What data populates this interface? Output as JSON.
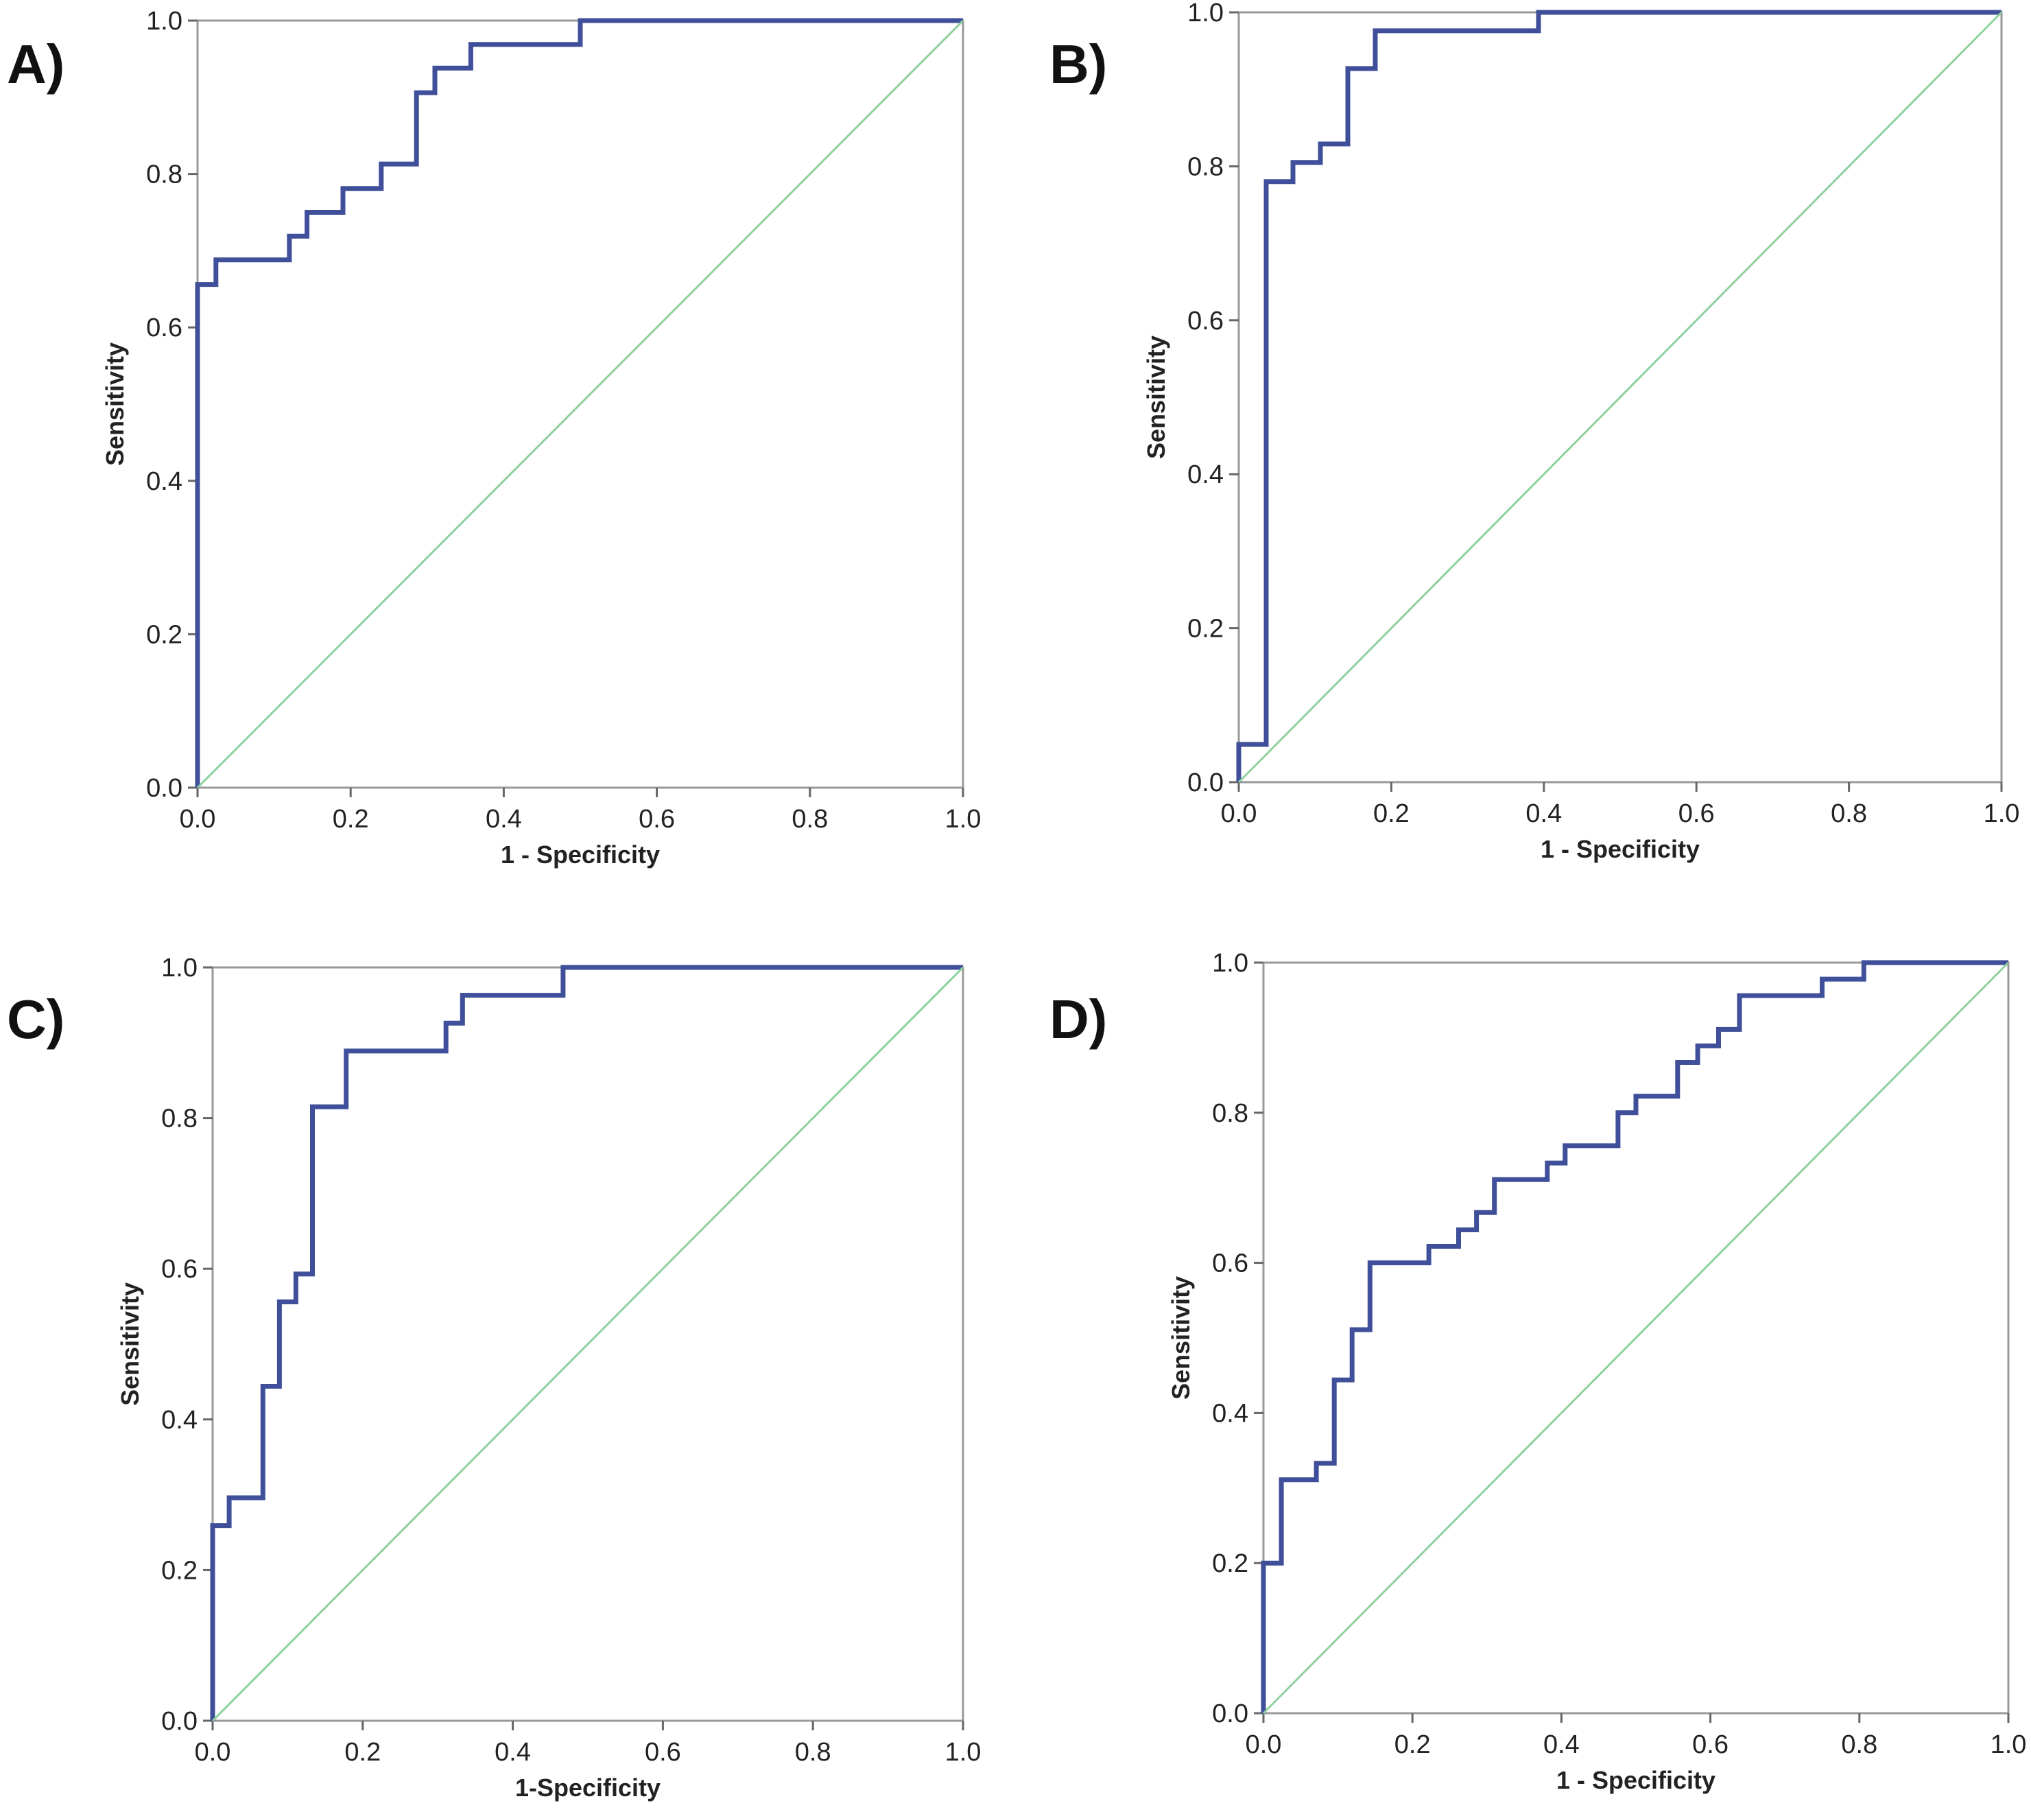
{
  "chart_data": [
    {
      "panel": "A)",
      "type": "line",
      "xlabel": "1 - Specificity",
      "ylabel": "Sensitivity",
      "xlim": [
        0,
        1
      ],
      "ylim": [
        0,
        1
      ],
      "xticks": [
        "0.0",
        "0.2",
        "0.4",
        "0.6",
        "0.8",
        "1.0"
      ],
      "yticks": [
        "0.0",
        "0.2",
        "0.4",
        "0.6",
        "0.8",
        "1.0"
      ],
      "colors": {
        "roc": "#3f4f9a",
        "reference": "#8fd19e",
        "frame": "#999999"
      },
      "series": [
        {
          "name": "ROC",
          "x": [
            0,
            0,
            0.024,
            0.024,
            0.12,
            0.12,
            0.143,
            0.143,
            0.19,
            0.19,
            0.24,
            0.24,
            0.286,
            0.286,
            0.31,
            0.31,
            0.357,
            0.357,
            0.5,
            0.5,
            1
          ],
          "y": [
            0,
            0.656,
            0.656,
            0.688,
            0.688,
            0.719,
            0.719,
            0.75,
            0.75,
            0.781,
            0.781,
            0.813,
            0.813,
            0.906,
            0.906,
            0.938,
            0.938,
            0.969,
            0.969,
            1,
            1
          ]
        },
        {
          "name": "Reference",
          "x": [
            0,
            1
          ],
          "y": [
            0,
            1
          ]
        }
      ]
    },
    {
      "panel": "B)",
      "type": "line",
      "xlabel": "1 - Specificity",
      "ylabel": "Sensitivity",
      "xlim": [
        0,
        1
      ],
      "ylim": [
        0,
        1
      ],
      "xticks": [
        "0.0",
        "0.2",
        "0.4",
        "0.6",
        "0.8",
        "1.0"
      ],
      "yticks": [
        "0.0",
        "0.2",
        "0.4",
        "0.6",
        "0.8",
        "1.0"
      ],
      "colors": {
        "roc": "#3f4f9a",
        "reference": "#8fd19e",
        "frame": "#999999"
      },
      "series": [
        {
          "name": "ROC",
          "x": [
            0,
            0,
            0.036,
            0.036,
            0.071,
            0.071,
            0.107,
            0.107,
            0.143,
            0.143,
            0.179,
            0.179,
            0.393,
            0.393,
            1
          ],
          "y": [
            0,
            0.049,
            0.049,
            0.78,
            0.78,
            0.805,
            0.805,
            0.829,
            0.829,
            0.927,
            0.927,
            0.976,
            0.976,
            1,
            1
          ]
        },
        {
          "name": "Reference",
          "x": [
            0,
            1
          ],
          "y": [
            0,
            1
          ]
        }
      ]
    },
    {
      "panel": "C)",
      "type": "line",
      "xlabel": "1-Specificity",
      "ylabel": "Sensitivity",
      "xlim": [
        0,
        1
      ],
      "ylim": [
        0,
        1
      ],
      "xticks": [
        "0.0",
        "0.2",
        "0.4",
        "0.6",
        "0.8",
        "1.0"
      ],
      "yticks": [
        "0.0",
        "0.2",
        "0.4",
        "0.6",
        "0.8",
        "1.0"
      ],
      "colors": {
        "roc": "#3f4f9a",
        "reference": "#8fd19e",
        "frame": "#999999"
      },
      "series": [
        {
          "name": "ROC",
          "x": [
            0,
            0,
            0.022,
            0.022,
            0.067,
            0.067,
            0.089,
            0.089,
            0.111,
            0.111,
            0.133,
            0.133,
            0.178,
            0.178,
            0.311,
            0.311,
            0.333,
            0.333,
            0.467,
            0.467,
            1
          ],
          "y": [
            0,
            0.259,
            0.259,
            0.296,
            0.296,
            0.444,
            0.444,
            0.556,
            0.556,
            0.593,
            0.593,
            0.815,
            0.815,
            0.889,
            0.889,
            0.926,
            0.926,
            0.963,
            0.963,
            1,
            1
          ]
        },
        {
          "name": "Reference",
          "x": [
            0,
            1
          ],
          "y": [
            0,
            1
          ]
        }
      ]
    },
    {
      "panel": "D)",
      "type": "line",
      "xlabel": "1 - Specificity",
      "ylabel": "Sensitivity",
      "xlim": [
        0,
        1
      ],
      "ylim": [
        0,
        1
      ],
      "xticks": [
        "0.0",
        "0.2",
        "0.4",
        "0.6",
        "0.8",
        "1.0"
      ],
      "yticks": [
        "0.0",
        "0.2",
        "0.4",
        "0.6",
        "0.8",
        "1.0"
      ],
      "colors": {
        "roc": "#3f4f9a",
        "reference": "#8fd19e",
        "frame": "#999999"
      },
      "series": [
        {
          "name": "ROC",
          "x": [
            0,
            0,
            0.024,
            0.024,
            0.071,
            0.071,
            0.095,
            0.095,
            0.119,
            0.119,
            0.143,
            0.143,
            0.222,
            0.222,
            0.262,
            0.262,
            0.286,
            0.286,
            0.31,
            0.31,
            0.381,
            0.381,
            0.405,
            0.405,
            0.476,
            0.476,
            0.5,
            0.5,
            0.556,
            0.556,
            0.583,
            0.583,
            0.611,
            0.611,
            0.639,
            0.639,
            0.75,
            0.75,
            0.806,
            0.806,
            1
          ],
          "y": [
            0,
            0.2,
            0.2,
            0.311,
            0.311,
            0.333,
            0.333,
            0.444,
            0.444,
            0.511,
            0.511,
            0.6,
            0.6,
            0.622,
            0.622,
            0.644,
            0.644,
            0.667,
            0.667,
            0.711,
            0.711,
            0.733,
            0.733,
            0.756,
            0.756,
            0.8,
            0.8,
            0.822,
            0.822,
            0.867,
            0.867,
            0.889,
            0.889,
            0.911,
            0.911,
            0.956,
            0.956,
            0.978,
            0.978,
            1,
            1
          ]
        },
        {
          "name": "Reference",
          "x": [
            0,
            1
          ],
          "y": [
            0,
            1
          ]
        }
      ]
    }
  ]
}
